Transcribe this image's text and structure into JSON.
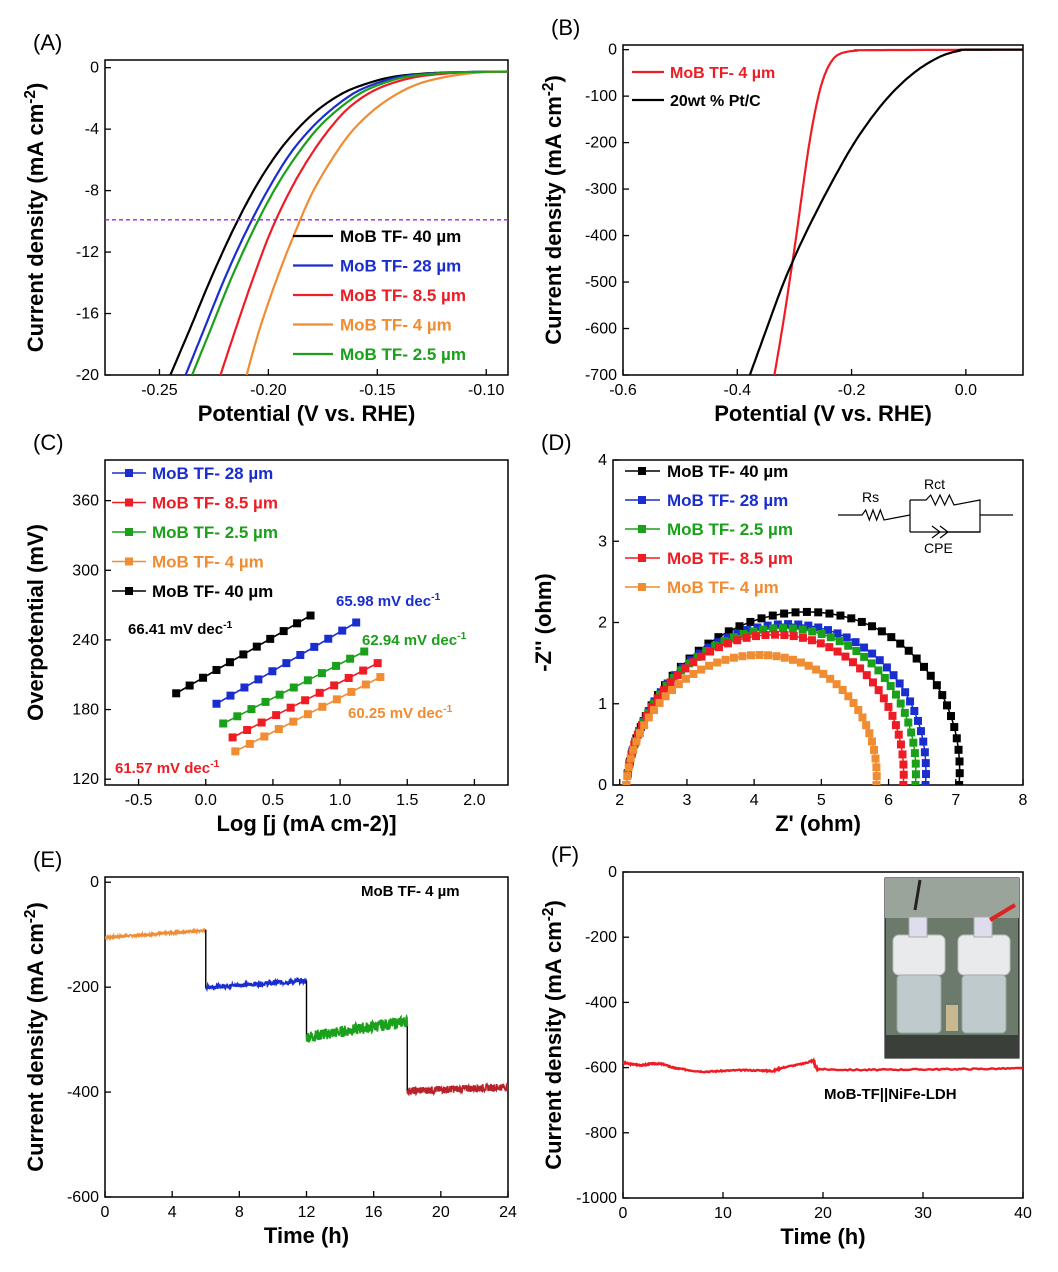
{
  "colors": {
    "c40": "#000000",
    "c28": "#1a2ed0",
    "c8_5": "#ee1c24",
    "c4": "#f08c32",
    "c2_5": "#1aa01a",
    "ref": "#a020f0"
  },
  "chart_data": [
    {
      "panel": "(A)",
      "type": "line",
      "xlabel": "Potential (V vs. RHE)",
      "ylabel": "Current density (mA cm-2)",
      "xlim": [
        -0.275,
        -0.09
      ],
      "ylim": [
        -20,
        0.5
      ],
      "xticks": [
        "-0.25",
        "-0.20",
        "-0.15",
        "-0.10"
      ],
      "yticks": [
        "0",
        "-4",
        "-8",
        "-12",
        "-16",
        "-20"
      ],
      "legend_position": "bottom-right",
      "reference_line": {
        "y": -9.9
      },
      "series": [
        {
          "name": "MoB TF- 40 µm",
          "color": "#000000",
          "x": [
            -0.245,
            -0.236,
            -0.226,
            -0.216,
            -0.206,
            -0.196,
            -0.186,
            -0.176,
            -0.165,
            -0.154,
            -0.143,
            -0.13,
            -0.115,
            -0.09
          ],
          "y": [
            -20,
            -17,
            -13.6,
            -10.5,
            -7.8,
            -5.6,
            -3.9,
            -2.6,
            -1.6,
            -1.0,
            -0.6,
            -0.4,
            -0.3,
            -0.25
          ]
        },
        {
          "name": "MoB TF- 28 µm",
          "color": "#1a2ed0",
          "x": [
            -0.238,
            -0.23,
            -0.22,
            -0.21,
            -0.2,
            -0.19,
            -0.18,
            -0.17,
            -0.16,
            -0.15,
            -0.14,
            -0.127,
            -0.113,
            -0.09
          ],
          "y": [
            -20,
            -17.2,
            -13.7,
            -10.6,
            -7.9,
            -5.6,
            -3.9,
            -2.6,
            -1.6,
            -1.0,
            -0.6,
            -0.4,
            -0.3,
            -0.25
          ]
        },
        {
          "name": "MoB TF- 8.5 µm",
          "color": "#ee1c24",
          "x": [
            -0.222,
            -0.215,
            -0.207,
            -0.199,
            -0.19,
            -0.181,
            -0.172,
            -0.163,
            -0.153,
            -0.143,
            -0.132,
            -0.12,
            -0.108,
            -0.09
          ],
          "y": [
            -20,
            -17,
            -13.7,
            -10.7,
            -8.0,
            -5.8,
            -4.0,
            -2.6,
            -1.6,
            -1.0,
            -0.6,
            -0.4,
            -0.3,
            -0.25
          ]
        },
        {
          "name": "MoB TF- 4 µm",
          "color": "#f08c32",
          "x": [
            -0.21,
            -0.204,
            -0.196,
            -0.188,
            -0.18,
            -0.171,
            -0.162,
            -0.152,
            -0.142,
            -0.132,
            -0.122,
            -0.112,
            -0.102,
            -0.09
          ],
          "y": [
            -20,
            -17,
            -13.7,
            -10.8,
            -8.2,
            -6.0,
            -4.2,
            -2.8,
            -1.8,
            -1.1,
            -0.7,
            -0.45,
            -0.3,
            -0.25
          ]
        },
        {
          "name": "MoB TF- 2.5 µm",
          "color": "#1aa01a",
          "x": [
            -0.235,
            -0.227,
            -0.217,
            -0.207,
            -0.197,
            -0.187,
            -0.177,
            -0.167,
            -0.157,
            -0.147,
            -0.137,
            -0.125,
            -0.112,
            -0.09
          ],
          "y": [
            -20,
            -17.2,
            -13.7,
            -10.6,
            -7.9,
            -5.7,
            -3.9,
            -2.6,
            -1.6,
            -1.0,
            -0.6,
            -0.4,
            -0.3,
            -0.25
          ]
        }
      ]
    },
    {
      "panel": "(B)",
      "type": "line",
      "xlabel": "Potential (V vs. RHE)",
      "ylabel": "Current density (mA cm-2)",
      "xlim": [
        -0.6,
        0.1
      ],
      "ylim": [
        -700,
        10
      ],
      "xticks": [
        "-0.6",
        "-0.4",
        "-0.2",
        "0.0"
      ],
      "yticks": [
        "0",
        "-100",
        "-200",
        "-300",
        "-400",
        "-500",
        "-600",
        "-700"
      ],
      "legend_position": "top-left",
      "series": [
        {
          "name": "MoB TF- 4 µm",
          "color": "#ee1c24",
          "x": [
            -0.335,
            -0.32,
            -0.305,
            -0.295,
            -0.285,
            -0.275,
            -0.265,
            -0.255,
            -0.245,
            -0.235,
            -0.225,
            -0.21,
            -0.19,
            -0.17,
            0.1
          ],
          "y": [
            -700,
            -590,
            -470,
            -385,
            -295,
            -210,
            -140,
            -85,
            -48,
            -25,
            -12,
            -5,
            -2,
            -1,
            0
          ]
        },
        {
          "name": "20wt % Pt/C",
          "color": "#000000",
          "x": [
            -0.378,
            -0.35,
            -0.32,
            -0.29,
            -0.26,
            -0.23,
            -0.2,
            -0.17,
            -0.14,
            -0.11,
            -0.08,
            -0.05,
            -0.03,
            -0.01,
            0.0,
            0.1
          ],
          "y": [
            -700,
            -605,
            -505,
            -420,
            -345,
            -275,
            -210,
            -155,
            -108,
            -70,
            -40,
            -18,
            -8,
            -2,
            0,
            0
          ]
        }
      ]
    },
    {
      "panel": "(C)",
      "type": "scatter",
      "xlabel": "Log [j (mA cm-2)]",
      "ylabel": "Overpotential (mV)",
      "xlim": [
        -0.75,
        2.25
      ],
      "ylim": [
        115,
        395
      ],
      "xticks": [
        "-0.5",
        "0.0",
        "0.5",
        "1.0",
        "1.5",
        "2.0"
      ],
      "yticks": [
        "120",
        "180",
        "240",
        "300",
        "360"
      ],
      "legend_position": "top-left",
      "series": [
        {
          "name": "MoB TF- 28 µm",
          "color": "#1a2ed0",
          "x_start": 0.08,
          "x_end": 1.12,
          "y_start": 185,
          "y_end": 255,
          "points": 11,
          "slope_label": "65.98 mV dec-1"
        },
        {
          "name": "MoB TF- 8.5 µm",
          "color": "#ee1c24",
          "x_start": 0.2,
          "x_end": 1.28,
          "y_start": 156,
          "y_end": 220,
          "points": 11,
          "slope_label": "61.57 mV dec-1"
        },
        {
          "name": "MoB TF- 2.5 µm",
          "color": "#1aa01a",
          "x_start": 0.13,
          "x_end": 1.18,
          "y_start": 168,
          "y_end": 230,
          "points": 11,
          "slope_label": "62.94 mV dec-1"
        },
        {
          "name": "MoB TF- 4 µm",
          "color": "#f08c32",
          "x_start": 0.22,
          "x_end": 1.3,
          "y_start": 144,
          "y_end": 208,
          "points": 11,
          "slope_label": "60.25 mV dec-1"
        },
        {
          "name": "MoB TF- 40 µm",
          "color": "#000000",
          "x_start": -0.22,
          "x_end": 0.78,
          "y_start": 194,
          "y_end": 261,
          "points": 11,
          "slope_label": "66.41 mV dec-1"
        }
      ]
    },
    {
      "panel": "(D)",
      "type": "scatter",
      "xlabel": "Z' (ohm)",
      "ylabel": "-Z'' (ohm)",
      "xlim": [
        1.9,
        8
      ],
      "ylim": [
        0,
        4
      ],
      "xticks": [
        "2",
        "3",
        "4",
        "5",
        "6",
        "7",
        "8"
      ],
      "yticks": [
        "0",
        "1",
        "2",
        "3",
        "4"
      ],
      "legend_position": "top-left",
      "circuit_labels": [
        "Rs",
        "Rct",
        "CPE"
      ],
      "series": [
        {
          "name": "MoB TF- 40 µm",
          "color": "#000000",
          "x_start": 2.1,
          "x_end": 7.05,
          "peak": 2.13,
          "skew": 0.35
        },
        {
          "name": "MoB TF- 28 µm",
          "color": "#1a2ed0",
          "x_start": 2.1,
          "x_end": 6.55,
          "peak": 1.98,
          "skew": 0.3
        },
        {
          "name": "MoB TF- 2.5 µm",
          "color": "#1aa01a",
          "x_start": 2.1,
          "x_end": 6.4,
          "peak": 1.93,
          "skew": 0.3
        },
        {
          "name": "MoB TF- 8.5 µm",
          "color": "#ee1c24",
          "x_start": 2.1,
          "x_end": 6.22,
          "peak": 1.85,
          "skew": 0.25
        },
        {
          "name": "MoB TF- 4 µm",
          "color": "#f08c32",
          "x_start": 2.1,
          "x_end": 5.82,
          "peak": 1.6,
          "skew": 0.2
        }
      ]
    },
    {
      "panel": "(E)",
      "type": "line",
      "xlabel": "Time (h)",
      "ylabel": "Current density (mA cm-2)",
      "xlim": [
        0,
        24
      ],
      "ylim": [
        -600,
        10
      ],
      "xticks": [
        "0",
        "4",
        "8",
        "12",
        "16",
        "20",
        "24"
      ],
      "yticks": [
        "0",
        "-200",
        "-400",
        "-600"
      ],
      "annotation": "MoB TF- 4 µm",
      "segments": [
        {
          "color": "#f08c32",
          "t_start": 0,
          "t_end": 6,
          "y_start": -105,
          "y_end": -92,
          "noise": 4
        },
        {
          "color": "#1a2ed0",
          "t_start": 6,
          "t_end": 12,
          "y_start": -200,
          "y_end": -188,
          "noise": 9
        },
        {
          "color": "#1aa01a",
          "t_start": 12,
          "t_end": 18,
          "y_start": -295,
          "y_end": -265,
          "noise": 22
        },
        {
          "color": "#b8222a",
          "t_start": 18,
          "t_end": 24,
          "y_start": -398,
          "y_end": -390,
          "noise": 14
        }
      ]
    },
    {
      "panel": "(F)",
      "type": "line",
      "xlabel": "Time (h)",
      "ylabel": "Current density (mA cm-2)",
      "xlim": [
        0,
        40
      ],
      "ylim": [
        -1000,
        0
      ],
      "xticks": [
        "0",
        "10",
        "20",
        "30",
        "40"
      ],
      "yticks": [
        "0",
        "-200",
        "-400",
        "-600",
        "-800",
        "-1000"
      ],
      "annotation": "MoB-TF||NiFe-LDH",
      "series": [
        {
          "name": "",
          "color": "#ee1c24",
          "x": [
            0,
            1,
            2,
            3,
            4,
            5,
            6,
            8,
            10,
            12,
            14,
            15,
            16,
            18,
            19,
            19.3,
            20,
            24,
            28,
            32,
            36,
            40
          ],
          "y": [
            -585,
            -590,
            -592,
            -588,
            -590,
            -600,
            -605,
            -612,
            -610,
            -608,
            -609,
            -610,
            -600,
            -588,
            -580,
            -600,
            -605,
            -607,
            -606,
            -605,
            -604,
            -602
          ]
        }
      ]
    }
  ],
  "panels": {
    "A": {
      "tag": "(A)"
    },
    "B": {
      "tag": "(B)"
    },
    "C": {
      "tag": "(C)"
    },
    "D": {
      "tag": "(D)"
    },
    "E": {
      "tag": "(E)"
    },
    "F": {
      "tag": "(F)"
    }
  }
}
